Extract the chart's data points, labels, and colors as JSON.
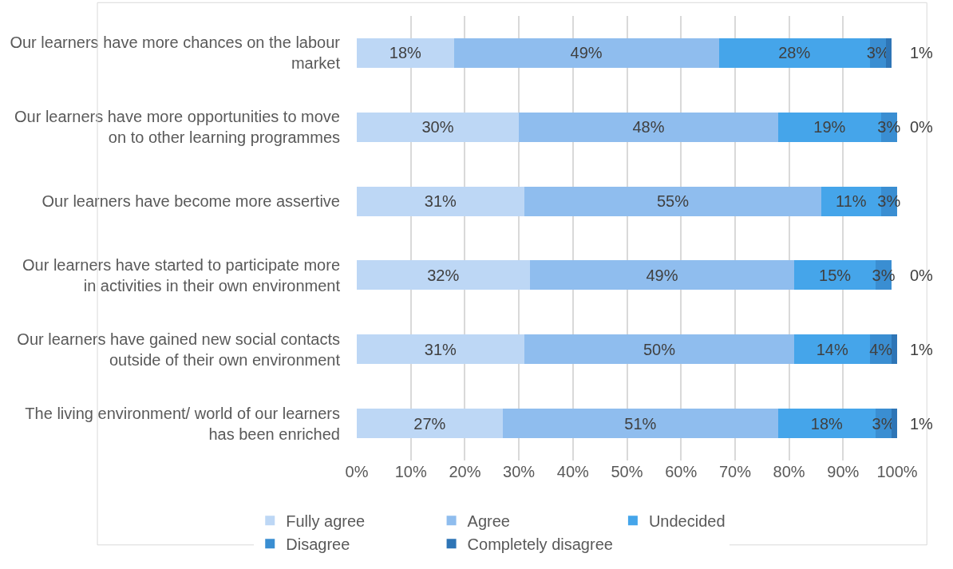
{
  "chart_data": {
    "type": "bar",
    "orientation": "horizontal",
    "stacked": true,
    "categories": [
      "Our learners have more chances on the labour market",
      "Our learners have more opportunities to move on to other learning programmes",
      "Our learners have become more assertive",
      "Our learners have started to participate more in activities in their own environment",
      "Our learners have gained new social contacts outside of their own environment",
      "The living environment/ world of our learners has been enriched"
    ],
    "series": [
      {
        "name": "Fully agree",
        "color": "#bdd7f5",
        "values": [
          18,
          30,
          31,
          32,
          31,
          27
        ],
        "value_labels": [
          "18%",
          "30%",
          "31%",
          "32%",
          "31%",
          "27%"
        ]
      },
      {
        "name": "Agree",
        "color": "#8fbdee",
        "values": [
          49,
          48,
          55,
          49,
          50,
          51
        ],
        "value_labels": [
          "49%",
          "48%",
          "55%",
          "49%",
          "50%",
          "51%"
        ]
      },
      {
        "name": "Undecided",
        "color": "#45a5ea",
        "values": [
          28,
          19,
          11,
          15,
          14,
          18
        ],
        "value_labels": [
          "28%",
          "19%",
          "11%",
          "15%",
          "14%",
          "18%"
        ]
      },
      {
        "name": "Disagree",
        "color": "#3a8ed2",
        "values": [
          3,
          3,
          3,
          3,
          4,
          3
        ],
        "value_labels": [
          "3%",
          "3%",
          "3%",
          "3%",
          "4%",
          "3%"
        ]
      },
      {
        "name": "Completely disagree",
        "color": "#2e75b6",
        "values": [
          1,
          0,
          null,
          0,
          1,
          1
        ],
        "value_labels": [
          "1%",
          "0%",
          null,
          "0%",
          "1%",
          "1%"
        ]
      }
    ],
    "xlim": [
      0,
      100
    ],
    "xticks": [
      {
        "value": 0,
        "label": "0%"
      },
      {
        "value": 10,
        "label": "10%"
      },
      {
        "value": 20,
        "label": "20%"
      },
      {
        "value": 30,
        "label": "30%"
      },
      {
        "value": 40,
        "label": "40%"
      },
      {
        "value": 50,
        "label": "50%"
      },
      {
        "value": 60,
        "label": "60%"
      },
      {
        "value": 70,
        "label": "70%"
      },
      {
        "value": 80,
        "label": "80%"
      },
      {
        "value": 90,
        "label": "90%"
      },
      {
        "value": 100,
        "label": "100%"
      }
    ],
    "grid": "x",
    "legend": "bottom"
  }
}
